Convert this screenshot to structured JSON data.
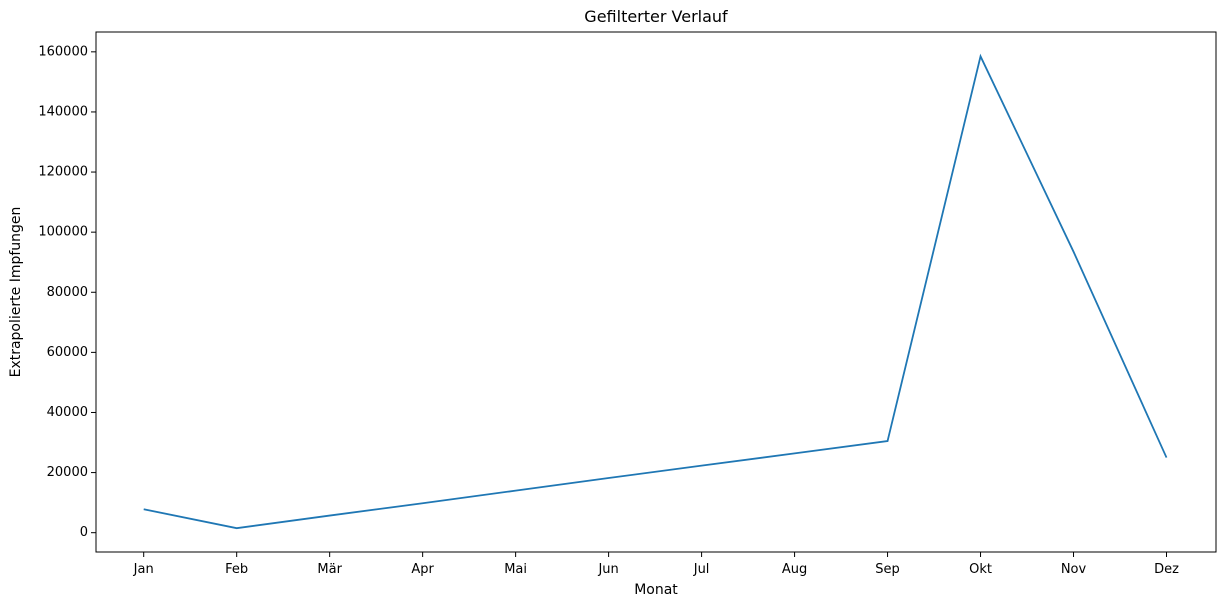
{
  "chart_data": {
    "type": "line",
    "title": "Gefilterter Verlauf",
    "xlabel": "Monat",
    "ylabel": "Extrapolierte Impfungen",
    "categories": [
      "Jan",
      "Feb",
      "Mär",
      "Apr",
      "Mai",
      "Jun",
      "Jul",
      "Aug",
      "Sep",
      "Okt",
      "Nov",
      "Dez"
    ],
    "series": [
      {
        "values": [
          7800,
          1500,
          5700,
          9800,
          14000,
          18200,
          22300,
          26400,
          30500,
          158500,
          93500,
          25000
        ],
        "color": "#1f77b4"
      }
    ],
    "yticks": [
      0,
      20000,
      40000,
      60000,
      80000,
      100000,
      120000,
      140000,
      160000
    ],
    "ytick_labels": [
      "0",
      "20000",
      "40000",
      "60000",
      "80000",
      "100000",
      "120000",
      "140000",
      "160000"
    ],
    "ylim": [
      -6425,
      166600
    ],
    "grid": false,
    "legend": "none"
  }
}
